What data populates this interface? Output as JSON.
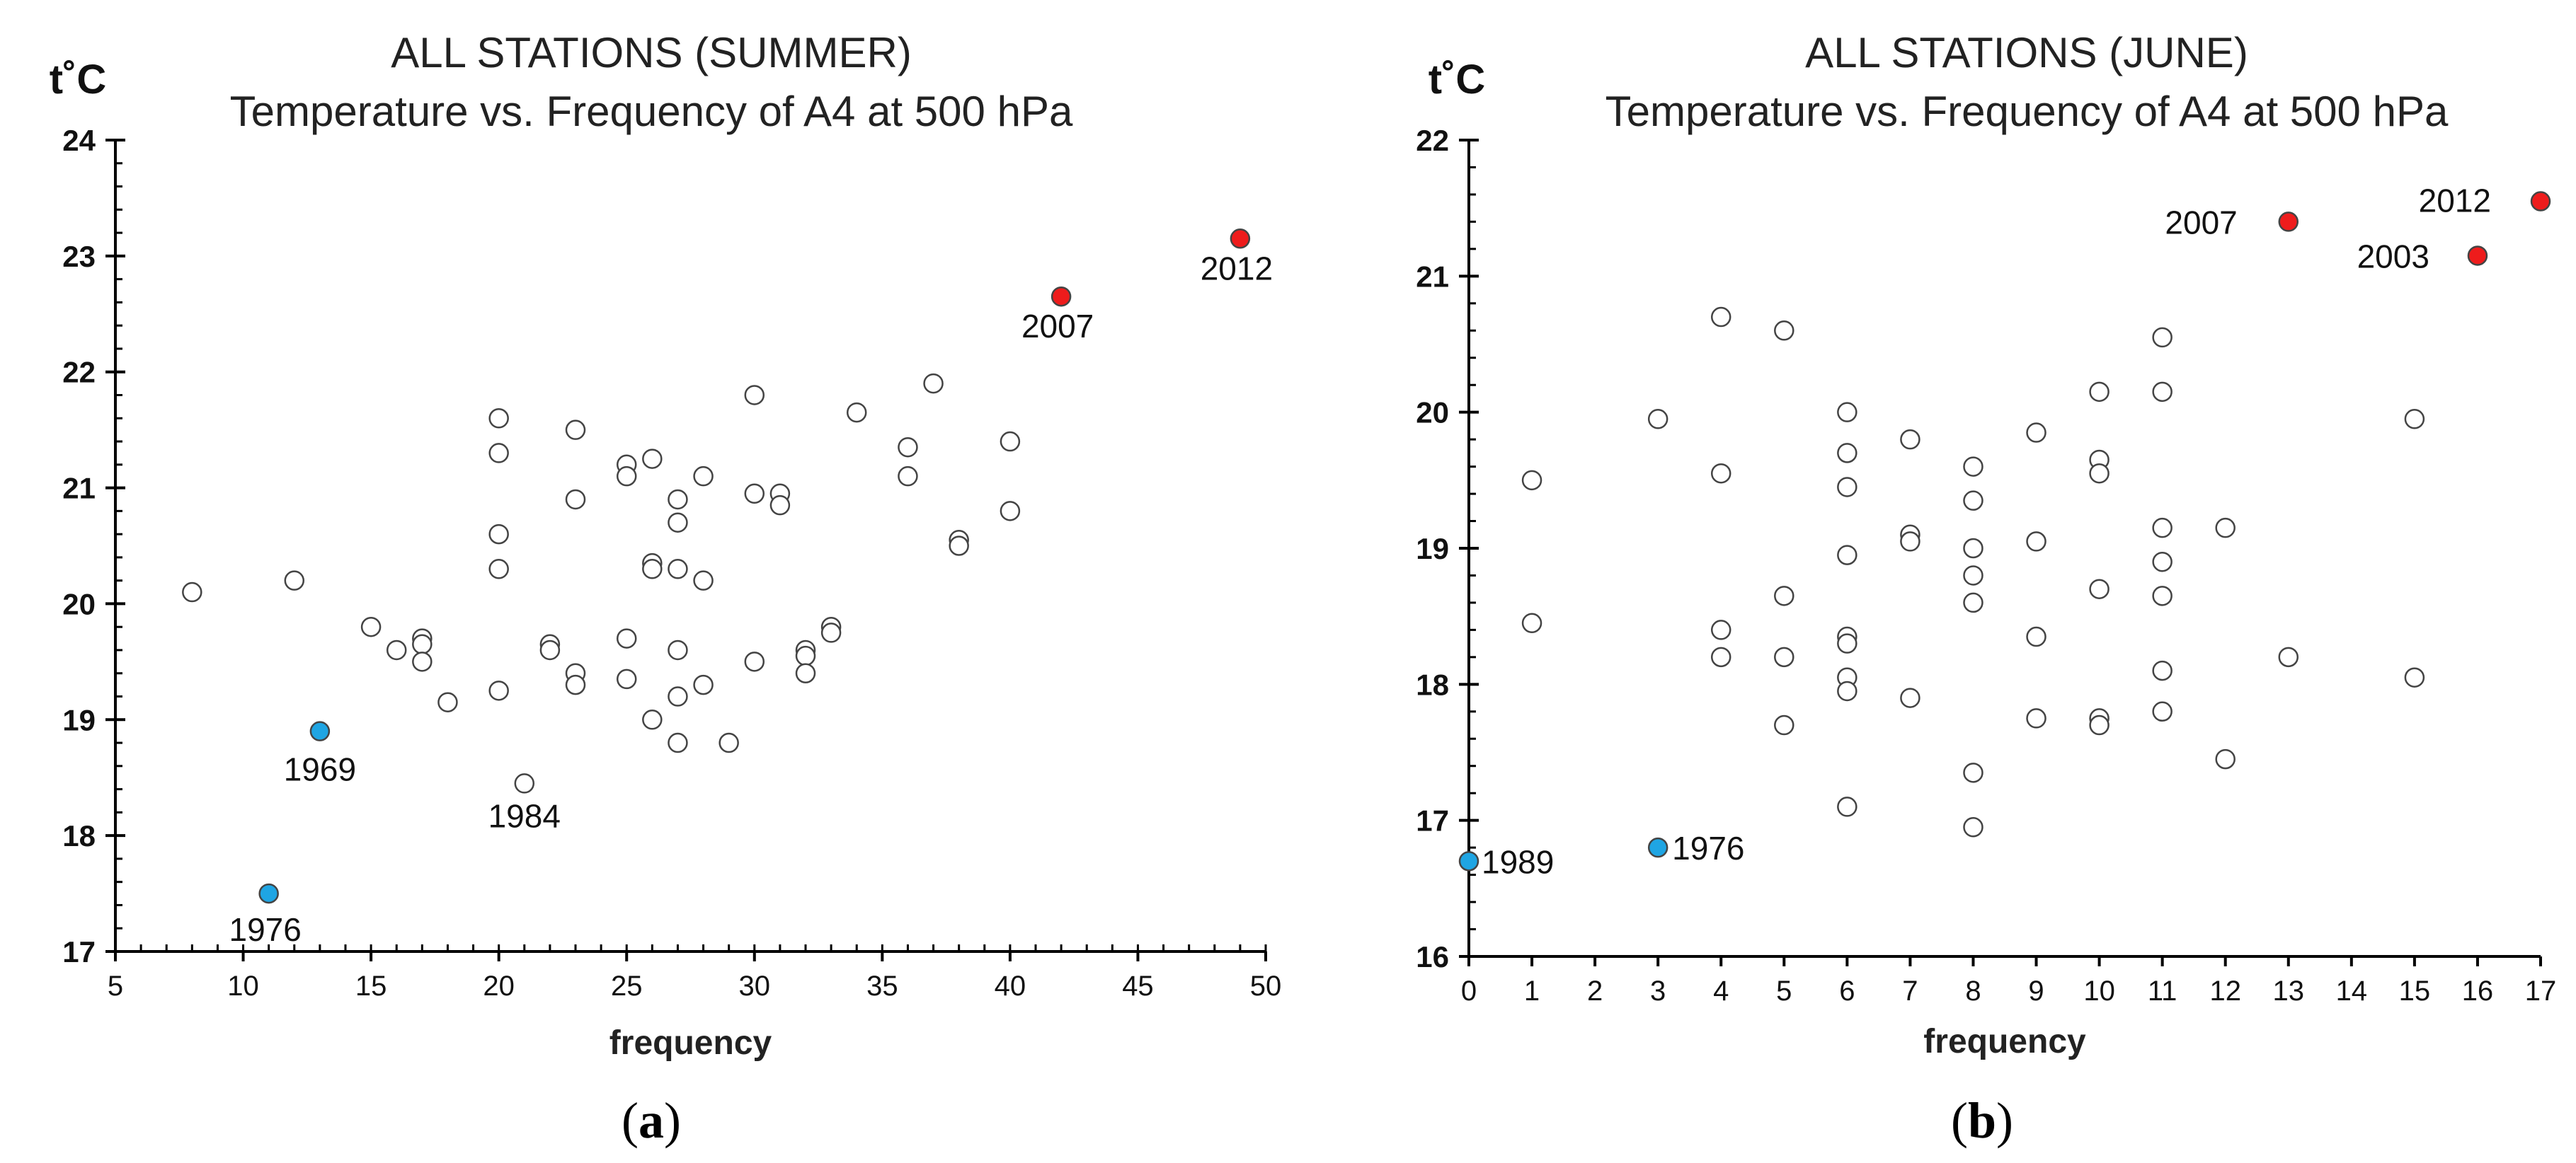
{
  "chart_data": [
    {
      "type": "scatter",
      "panel_prefix": "(",
      "panel_letter": "a",
      "panel_suffix": ")",
      "title": "ALL STATIONS (SUMMER)",
      "subtitle": "Temperature vs. Frequency of A4 at 500 hPa",
      "xlabel": "frequency",
      "ylabel": "t˚C",
      "xlim": [
        5,
        50
      ],
      "ylim": [
        17,
        24
      ],
      "x_ticks": [
        5,
        10,
        15,
        20,
        25,
        30,
        35,
        40,
        45,
        50
      ],
      "y_ticks": [
        17,
        18,
        19,
        20,
        21,
        22,
        23,
        24
      ],
      "x_minor_step": 1,
      "y_minor_step": 0.2,
      "grid": false,
      "colors": {
        "default": "#ffffff",
        "hot": "#ee1c1c",
        "cold": "#1fa5e3",
        "edge": "#444444"
      },
      "series": [
        {
          "name": "other years",
          "points": [
            [
              8,
              20.1
            ],
            [
              12,
              20.2
            ],
            [
              15,
              19.8
            ],
            [
              16,
              19.6
            ],
            [
              17,
              19.7
            ],
            [
              17,
              19.65
            ],
            [
              17,
              19.5
            ],
            [
              18,
              19.15
            ],
            [
              20,
              21.6
            ],
            [
              20,
              21.3
            ],
            [
              20,
              20.6
            ],
            [
              20,
              20.3
            ],
            [
              20,
              19.25
            ],
            [
              21,
              18.45
            ],
            [
              22,
              19.65
            ],
            [
              22,
              19.6
            ],
            [
              23,
              21.5
            ],
            [
              23,
              20.9
            ],
            [
              23,
              19.4
            ],
            [
              23,
              19.3
            ],
            [
              25,
              21.2
            ],
            [
              25,
              21.1
            ],
            [
              25,
              19.7
            ],
            [
              25,
              19.35
            ],
            [
              26,
              21.25
            ],
            [
              26,
              20.35
            ],
            [
              26,
              20.3
            ],
            [
              26,
              19.0
            ],
            [
              27,
              20.9
            ],
            [
              27,
              20.7
            ],
            [
              27,
              20.3
            ],
            [
              27,
              19.6
            ],
            [
              27,
              19.2
            ],
            [
              27,
              18.8
            ],
            [
              28,
              21.1
            ],
            [
              28,
              20.2
            ],
            [
              28,
              19.3
            ],
            [
              29,
              18.8
            ],
            [
              30,
              21.8
            ],
            [
              30,
              20.95
            ],
            [
              30,
              19.5
            ],
            [
              31,
              20.95
            ],
            [
              31,
              20.85
            ],
            [
              32,
              19.6
            ],
            [
              32,
              19.55
            ],
            [
              32,
              19.4
            ],
            [
              33,
              19.8
            ],
            [
              33,
              19.75
            ],
            [
              34,
              21.65
            ],
            [
              36,
              21.35
            ],
            [
              36,
              21.1
            ],
            [
              37,
              21.9
            ],
            [
              38,
              20.55
            ],
            [
              38,
              20.5
            ],
            [
              40,
              21.4
            ],
            [
              40,
              20.8
            ]
          ]
        },
        {
          "name": "hot years",
          "points": [
            [
              42,
              22.65
            ],
            [
              49,
              23.15
            ]
          ]
        },
        {
          "name": "cold years",
          "points": [
            [
              13,
              18.9
            ],
            [
              11,
              17.5
            ]
          ]
        }
      ],
      "annotations": [
        {
          "text": "2012",
          "x": 49,
          "y": 23.15
        },
        {
          "text": "2007",
          "x": 42,
          "y": 22.65
        },
        {
          "text": "1969",
          "x": 13,
          "y": 18.9
        },
        {
          "text": "1984",
          "x": 21,
          "y": 18.45
        },
        {
          "text": "1976",
          "x": 11,
          "y": 17.5
        }
      ]
    },
    {
      "type": "scatter",
      "panel_prefix": "(",
      "panel_letter": "b",
      "panel_suffix": ")",
      "title": "ALL STATIONS (JUNE)",
      "subtitle": "Temperature vs. Frequency of A4 at 500 hPa",
      "xlabel": "frequency",
      "ylabel": "t˚C",
      "xlim": [
        0,
        17
      ],
      "ylim": [
        16,
        22
      ],
      "x_ticks": [
        0,
        1,
        2,
        3,
        4,
        5,
        6,
        7,
        8,
        9,
        10,
        11,
        12,
        13,
        14,
        15,
        16,
        17
      ],
      "y_ticks": [
        16,
        17,
        18,
        19,
        20,
        21,
        22
      ],
      "x_minor_step": 0,
      "y_minor_step": 0.2,
      "grid": false,
      "colors": {
        "default": "#ffffff",
        "hot": "#ee1c1c",
        "cold": "#1fa5e3",
        "edge": "#444444"
      },
      "series": [
        {
          "name": "other years",
          "points": [
            [
              1,
              19.5
            ],
            [
              1,
              18.45
            ],
            [
              3,
              19.95
            ],
            [
              4,
              20.7
            ],
            [
              4,
              19.55
            ],
            [
              4,
              18.4
            ],
            [
              4,
              18.2
            ],
            [
              5,
              20.6
            ],
            [
              5,
              18.65
            ],
            [
              5,
              18.2
            ],
            [
              5,
              17.7
            ],
            [
              6,
              20.0
            ],
            [
              6,
              19.7
            ],
            [
              6,
              19.45
            ],
            [
              6,
              18.95
            ],
            [
              6,
              18.35
            ],
            [
              6,
              18.3
            ],
            [
              6,
              18.05
            ],
            [
              6,
              17.95
            ],
            [
              6,
              17.1
            ],
            [
              7,
              19.8
            ],
            [
              7,
              19.1
            ],
            [
              7,
              19.05
            ],
            [
              7,
              17.9
            ],
            [
              8,
              19.6
            ],
            [
              8,
              19.35
            ],
            [
              8,
              19.0
            ],
            [
              8,
              18.8
            ],
            [
              8,
              18.6
            ],
            [
              8,
              17.35
            ],
            [
              8,
              16.95
            ],
            [
              9,
              19.85
            ],
            [
              9,
              19.05
            ],
            [
              9,
              18.35
            ],
            [
              9,
              17.75
            ],
            [
              10,
              20.15
            ],
            [
              10,
              19.65
            ],
            [
              10,
              19.55
            ],
            [
              10,
              18.7
            ],
            [
              10,
              17.75
            ],
            [
              10,
              17.7
            ],
            [
              11,
              20.55
            ],
            [
              11,
              20.15
            ],
            [
              11,
              19.15
            ],
            [
              11,
              18.9
            ],
            [
              11,
              18.65
            ],
            [
              11,
              18.1
            ],
            [
              11,
              17.8
            ],
            [
              12,
              19.15
            ],
            [
              12,
              17.45
            ],
            [
              13,
              18.2
            ],
            [
              15,
              19.95
            ],
            [
              15,
              18.05
            ]
          ]
        },
        {
          "name": "hot years",
          "points": [
            [
              13,
              21.4
            ],
            [
              16,
              21.15
            ],
            [
              17,
              21.55
            ]
          ]
        },
        {
          "name": "cold years",
          "points": [
            [
              0,
              16.7
            ],
            [
              3,
              16.8
            ]
          ]
        }
      ],
      "annotations": [
        {
          "text": "2007",
          "x": 13,
          "y": 21.4
        },
        {
          "text": "2012",
          "x": 17,
          "y": 21.55
        },
        {
          "text": "2003",
          "x": 16,
          "y": 21.15
        },
        {
          "text": "1989",
          "x": 0,
          "y": 16.7
        },
        {
          "text": "1976",
          "x": 3,
          "y": 16.8
        }
      ]
    }
  ]
}
